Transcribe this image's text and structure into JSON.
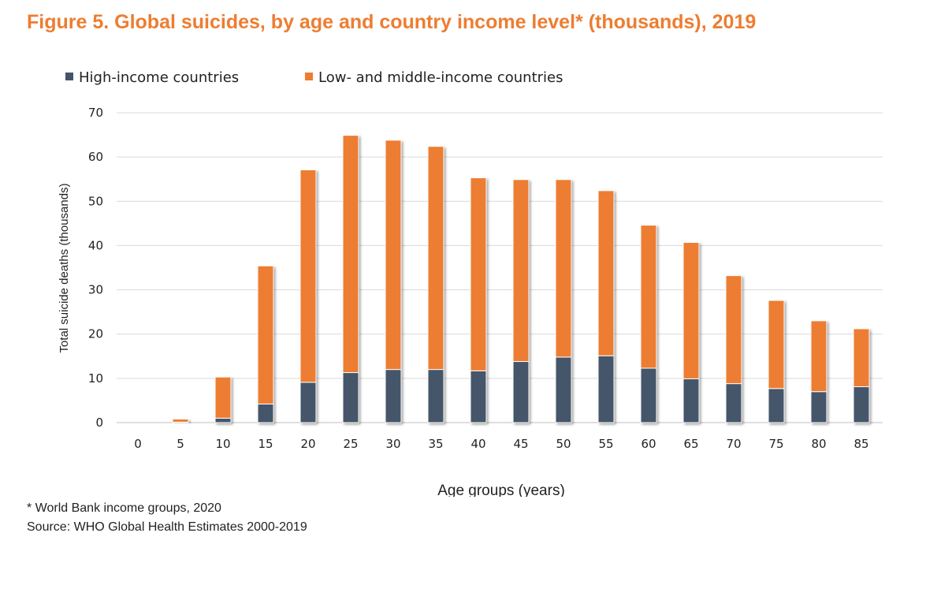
{
  "chart_data": {
    "type": "bar",
    "stacked": true,
    "title": "Figure 5. Global suicides, by age and country income level* (thousands), 2019",
    "xlabel": "Age groups (years)",
    "ylabel": "Total suicide deaths (thousands)",
    "ylim": [
      0,
      70
    ],
    "yticks": [
      0,
      10,
      20,
      30,
      40,
      50,
      60,
      70
    ],
    "grid": true,
    "legend_position": "top-left",
    "categories": [
      "0",
      "5",
      "10",
      "15",
      "20",
      "25",
      "30",
      "35",
      "40",
      "45",
      "50",
      "55",
      "60",
      "65",
      "70",
      "75",
      "80",
      "85"
    ],
    "series": [
      {
        "name": "High-income countries",
        "color": "#44546a",
        "values": [
          0,
          0.1,
          1.0,
          4.2,
          9.1,
          11.3,
          12.0,
          12.0,
          11.7,
          13.8,
          14.8,
          15.1,
          12.3,
          9.9,
          8.8,
          7.7,
          7.0,
          8.1
        ]
      },
      {
        "name": "Low- and middle-income countries",
        "color": "#ed7d31",
        "values": [
          0,
          0.7,
          9.3,
          31.2,
          48.0,
          53.6,
          51.8,
          50.4,
          43.6,
          41.1,
          40.1,
          37.3,
          32.3,
          30.8,
          24.4,
          19.9,
          16.0,
          13.1
        ]
      }
    ]
  },
  "notes": {
    "footnote": "* World Bank income groups, 2020",
    "source": "Source: WHO Global Health Estimates 2000-2019"
  }
}
